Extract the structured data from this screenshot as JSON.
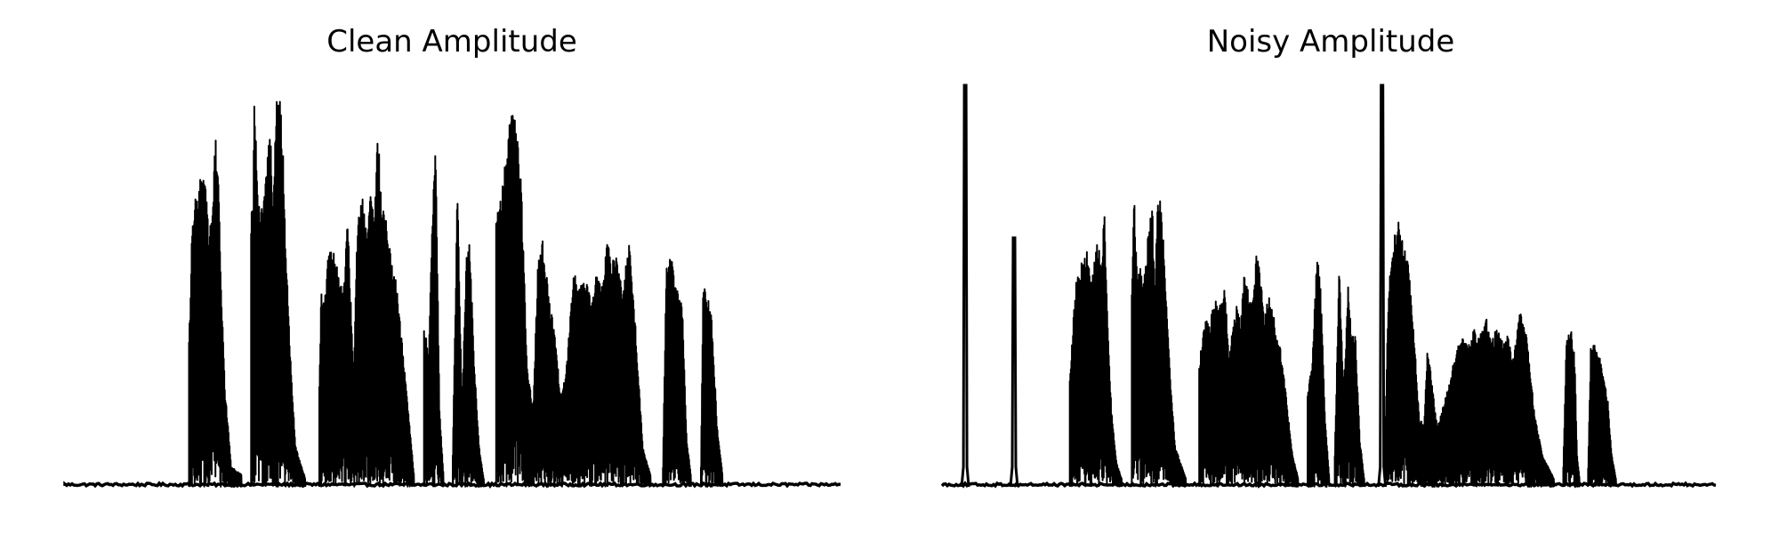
{
  "chart_data": [
    {
      "type": "line",
      "title": "Clean Amplitude",
      "axes_visible": false,
      "line_color": "#000000",
      "ylim": [
        0,
        1
      ],
      "xlim": [
        0,
        1
      ],
      "segments": [
        {
          "start": 0.16,
          "end": 0.228,
          "envelope": [
            [
              0,
              0.38
            ],
            [
              0.02,
              0.45
            ],
            [
              0.05,
              0.62
            ],
            [
              0.08,
              0.67
            ],
            [
              0.12,
              0.72
            ],
            [
              0.19,
              0.76
            ],
            [
              0.26,
              0.78
            ],
            [
              0.33,
              0.73
            ],
            [
              0.38,
              0.6
            ],
            [
              0.42,
              0.7
            ],
            [
              0.46,
              0.74
            ],
            [
              0.5,
              0.88
            ],
            [
              0.54,
              0.85
            ],
            [
              0.6,
              0.55
            ],
            [
              0.68,
              0.25
            ],
            [
              0.8,
              0.05
            ],
            [
              1,
              0.03
            ]
          ]
        },
        {
          "start": 0.24,
          "end": 0.31,
          "envelope": [
            [
              0,
              0.68
            ],
            [
              0.04,
              0.72
            ],
            [
              0.06,
              1.03
            ],
            [
              0.12,
              0.72
            ],
            [
              0.18,
              0.68
            ],
            [
              0.25,
              0.73
            ],
            [
              0.3,
              0.86
            ],
            [
              0.36,
              0.9
            ],
            [
              0.4,
              0.66
            ],
            [
              0.46,
              0.95
            ],
            [
              0.52,
              1.0
            ],
            [
              0.58,
              0.88
            ],
            [
              0.64,
              0.6
            ],
            [
              0.74,
              0.28
            ],
            [
              0.82,
              0.1
            ],
            [
              1,
              0.02
            ]
          ]
        },
        {
          "start": 0.328,
          "end": 0.45,
          "envelope": [
            [
              0,
              0.25
            ],
            [
              0.02,
              0.5
            ],
            [
              0.05,
              0.45
            ],
            [
              0.09,
              0.57
            ],
            [
              0.14,
              0.6
            ],
            [
              0.2,
              0.55
            ],
            [
              0.26,
              0.5
            ],
            [
              0.3,
              0.7
            ],
            [
              0.36,
              0.27
            ],
            [
              0.4,
              0.64
            ],
            [
              0.45,
              0.73
            ],
            [
              0.5,
              0.63
            ],
            [
              0.54,
              0.78
            ],
            [
              0.58,
              0.66
            ],
            [
              0.62,
              0.9
            ],
            [
              0.66,
              0.7
            ],
            [
              0.7,
              0.7
            ],
            [
              0.76,
              0.58
            ],
            [
              0.82,
              0.5
            ],
            [
              0.9,
              0.3
            ],
            [
              1,
              0.03
            ]
          ]
        },
        {
          "start": 0.463,
          "end": 0.488,
          "envelope": [
            [
              0,
              0.4
            ],
            [
              0.25,
              0.35
            ],
            [
              0.45,
              0.7
            ],
            [
              0.6,
              0.85
            ],
            [
              0.8,
              0.2
            ],
            [
              1,
              0.03
            ]
          ]
        },
        {
          "start": 0.5,
          "end": 0.54,
          "envelope": [
            [
              0,
              0.08
            ],
            [
              0.15,
              0.76
            ],
            [
              0.3,
              0.2
            ],
            [
              0.45,
              0.62
            ],
            [
              0.55,
              0.6
            ],
            [
              0.7,
              0.3
            ],
            [
              0.85,
              0.1
            ],
            [
              1,
              0.02
            ]
          ]
        },
        {
          "start": 0.556,
          "end": 0.755,
          "envelope": [
            [
              0,
              0.68
            ],
            [
              0.03,
              0.72
            ],
            [
              0.07,
              0.84
            ],
            [
              0.1,
              0.96
            ],
            [
              0.13,
              0.9
            ],
            [
              0.16,
              0.79
            ],
            [
              0.2,
              0.3
            ],
            [
              0.24,
              0.2
            ],
            [
              0.27,
              0.55
            ],
            [
              0.3,
              0.62
            ],
            [
              0.34,
              0.48
            ],
            [
              0.38,
              0.38
            ],
            [
              0.42,
              0.22
            ],
            [
              0.46,
              0.32
            ],
            [
              0.5,
              0.55
            ],
            [
              0.54,
              0.5
            ],
            [
              0.58,
              0.52
            ],
            [
              0.62,
              0.46
            ],
            [
              0.65,
              0.55
            ],
            [
              0.68,
              0.49
            ],
            [
              0.72,
              0.61
            ],
            [
              0.75,
              0.56
            ],
            [
              0.78,
              0.58
            ],
            [
              0.82,
              0.48
            ],
            [
              0.86,
              0.62
            ],
            [
              0.9,
              0.42
            ],
            [
              0.95,
              0.1
            ],
            [
              1,
              0.03
            ]
          ]
        },
        {
          "start": 0.771,
          "end": 0.807,
          "envelope": [
            [
              0,
              0.05
            ],
            [
              0.12,
              0.55
            ],
            [
              0.3,
              0.58
            ],
            [
              0.5,
              0.5
            ],
            [
              0.7,
              0.45
            ],
            [
              0.85,
              0.12
            ],
            [
              1,
              0.03
            ]
          ]
        },
        {
          "start": 0.82,
          "end": 0.848,
          "envelope": [
            [
              0,
              0.05
            ],
            [
              0.1,
              0.5
            ],
            [
              0.3,
              0.48
            ],
            [
              0.5,
              0.42
            ],
            [
              0.75,
              0.15
            ],
            [
              1,
              0.03
            ]
          ]
        }
      ]
    },
    {
      "type": "line",
      "title": "Noisy Amplitude",
      "axes_visible": false,
      "line_color": "#000000",
      "ylim": [
        0,
        1
      ],
      "xlim": [
        0,
        1
      ],
      "spikes": [
        {
          "x": 0.03,
          "height": 1.0
        },
        {
          "x": 0.093,
          "height": 0.62
        },
        {
          "x": 0.568,
          "height": 1.0
        }
      ],
      "segments": [
        {
          "start": 0.165,
          "end": 0.232,
          "envelope": [
            [
              0,
              0.28
            ],
            [
              0.04,
              0.35
            ],
            [
              0.08,
              0.45
            ],
            [
              0.13,
              0.52
            ],
            [
              0.2,
              0.55
            ],
            [
              0.28,
              0.57
            ],
            [
              0.36,
              0.6
            ],
            [
              0.42,
              0.5
            ],
            [
              0.5,
              0.6
            ],
            [
              0.56,
              0.62
            ],
            [
              0.62,
              0.55
            ],
            [
              0.66,
              0.72
            ],
            [
              0.72,
              0.45
            ],
            [
              0.8,
              0.2
            ],
            [
              0.9,
              0.06
            ],
            [
              1,
              0.02
            ]
          ]
        },
        {
          "start": 0.245,
          "end": 0.315,
          "envelope": [
            [
              0,
              0.52
            ],
            [
              0.04,
              0.74
            ],
            [
              0.1,
              0.52
            ],
            [
              0.15,
              0.56
            ],
            [
              0.2,
              0.5
            ],
            [
              0.26,
              0.58
            ],
            [
              0.32,
              0.65
            ],
            [
              0.38,
              0.7
            ],
            [
              0.42,
              0.48
            ],
            [
              0.47,
              0.7
            ],
            [
              0.52,
              0.72
            ],
            [
              0.57,
              0.65
            ],
            [
              0.62,
              0.5
            ],
            [
              0.7,
              0.3
            ],
            [
              0.8,
              0.1
            ],
            [
              1,
              0.02
            ]
          ]
        },
        {
          "start": 0.332,
          "end": 0.46,
          "envelope": [
            [
              0,
              0.3
            ],
            [
              0.03,
              0.38
            ],
            [
              0.06,
              0.42
            ],
            [
              0.1,
              0.4
            ],
            [
              0.14,
              0.45
            ],
            [
              0.18,
              0.47
            ],
            [
              0.22,
              0.45
            ],
            [
              0.26,
              0.5
            ],
            [
              0.3,
              0.32
            ],
            [
              0.34,
              0.4
            ],
            [
              0.38,
              0.46
            ],
            [
              0.42,
              0.42
            ],
            [
              0.46,
              0.55
            ],
            [
              0.5,
              0.48
            ],
            [
              0.54,
              0.46
            ],
            [
              0.58,
              0.6
            ],
            [
              0.62,
              0.52
            ],
            [
              0.66,
              0.42
            ],
            [
              0.7,
              0.48
            ],
            [
              0.74,
              0.45
            ],
            [
              0.78,
              0.38
            ],
            [
              0.82,
              0.35
            ],
            [
              0.88,
              0.22
            ],
            [
              0.94,
              0.08
            ],
            [
              1,
              0.02
            ]
          ]
        },
        {
          "start": 0.472,
          "end": 0.5,
          "envelope": [
            [
              0,
              0.25
            ],
            [
              0.2,
              0.3
            ],
            [
              0.45,
              0.6
            ],
            [
              0.6,
              0.5
            ],
            [
              0.8,
              0.18
            ],
            [
              1,
              0.02
            ]
          ]
        },
        {
          "start": 0.507,
          "end": 0.545,
          "envelope": [
            [
              0,
              0.08
            ],
            [
              0.15,
              0.56
            ],
            [
              0.3,
              0.24
            ],
            [
              0.45,
              0.5
            ],
            [
              0.55,
              0.4
            ],
            [
              0.7,
              0.38
            ],
            [
              0.85,
              0.12
            ],
            [
              1,
              0.02
            ]
          ]
        },
        {
          "start": 0.572,
          "end": 0.79,
          "envelope": [
            [
              0,
              0.12
            ],
            [
              0.02,
              0.5
            ],
            [
              0.05,
              0.62
            ],
            [
              0.08,
              0.66
            ],
            [
              0.11,
              0.6
            ],
            [
              0.14,
              0.55
            ],
            [
              0.17,
              0.4
            ],
            [
              0.2,
              0.18
            ],
            [
              0.23,
              0.15
            ],
            [
              0.25,
              0.35
            ],
            [
              0.28,
              0.25
            ],
            [
              0.31,
              0.15
            ],
            [
              0.34,
              0.2
            ],
            [
              0.37,
              0.25
            ],
            [
              0.4,
              0.3
            ],
            [
              0.43,
              0.35
            ],
            [
              0.46,
              0.37
            ],
            [
              0.5,
              0.36
            ],
            [
              0.53,
              0.4
            ],
            [
              0.56,
              0.38
            ],
            [
              0.6,
              0.42
            ],
            [
              0.63,
              0.36
            ],
            [
              0.66,
              0.4
            ],
            [
              0.7,
              0.36
            ],
            [
              0.73,
              0.38
            ],
            [
              0.76,
              0.32
            ],
            [
              0.8,
              0.44
            ],
            [
              0.84,
              0.38
            ],
            [
              0.88,
              0.2
            ],
            [
              0.93,
              0.08
            ],
            [
              1,
              0.02
            ]
          ]
        },
        {
          "start": 0.802,
          "end": 0.823,
          "envelope": [
            [
              0,
              0.05
            ],
            [
              0.2,
              0.38
            ],
            [
              0.5,
              0.4
            ],
            [
              0.7,
              0.32
            ],
            [
              0.85,
              0.08
            ],
            [
              1,
              0.02
            ]
          ]
        },
        {
          "start": 0.834,
          "end": 0.87,
          "envelope": [
            [
              0,
              0.05
            ],
            [
              0.1,
              0.36
            ],
            [
              0.3,
              0.35
            ],
            [
              0.5,
              0.3
            ],
            [
              0.7,
              0.22
            ],
            [
              0.85,
              0.08
            ],
            [
              1,
              0.02
            ]
          ]
        }
      ]
    }
  ]
}
